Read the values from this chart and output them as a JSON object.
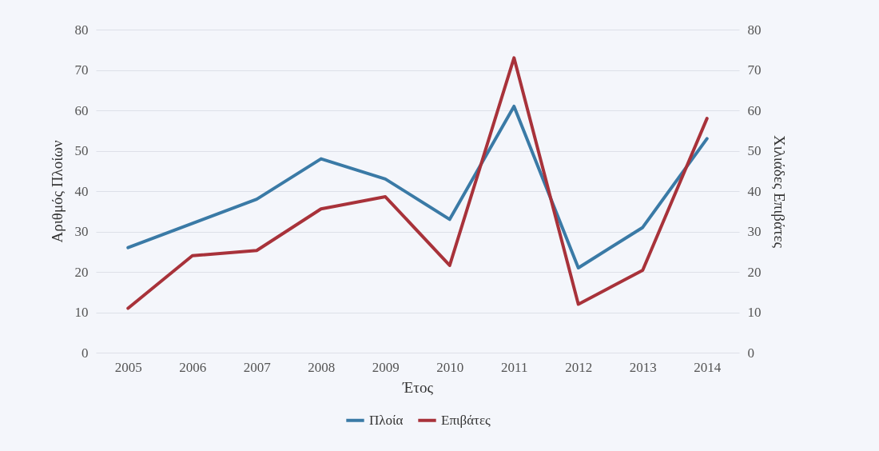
{
  "chart_data": {
    "type": "line",
    "xlabel": "Έτος",
    "ylabel": "Αριθμός Πλοίων",
    "y2label": "Χιλιάδες Επιβάτες",
    "categories": [
      "2005",
      "2006",
      "2007",
      "2008",
      "2009",
      "2010",
      "2011",
      "2012",
      "2013",
      "2014"
    ],
    "series": [
      {
        "name": "Πλοία",
        "color": "#3a7aa6",
        "values": [
          26,
          32,
          38,
          48,
          43,
          33,
          61,
          21,
          31,
          53
        ]
      },
      {
        "name": "Επιβάτες",
        "color": "#a8323a",
        "axis": "y2",
        "values": [
          11,
          24,
          25.3,
          35.6,
          38.6,
          21.6,
          73,
          12,
          20.4,
          58
        ]
      }
    ],
    "ylim": [
      0,
      80
    ],
    "yticks": [
      0,
      10,
      20,
      30,
      40,
      50,
      60,
      70,
      80
    ],
    "y2lim": [
      0,
      80
    ],
    "y2ticks": [
      0,
      10,
      20,
      30,
      40,
      50,
      60,
      70,
      80
    ],
    "grid": "y",
    "legend": "bottom",
    "line_style": "solid",
    "marker": "none"
  }
}
